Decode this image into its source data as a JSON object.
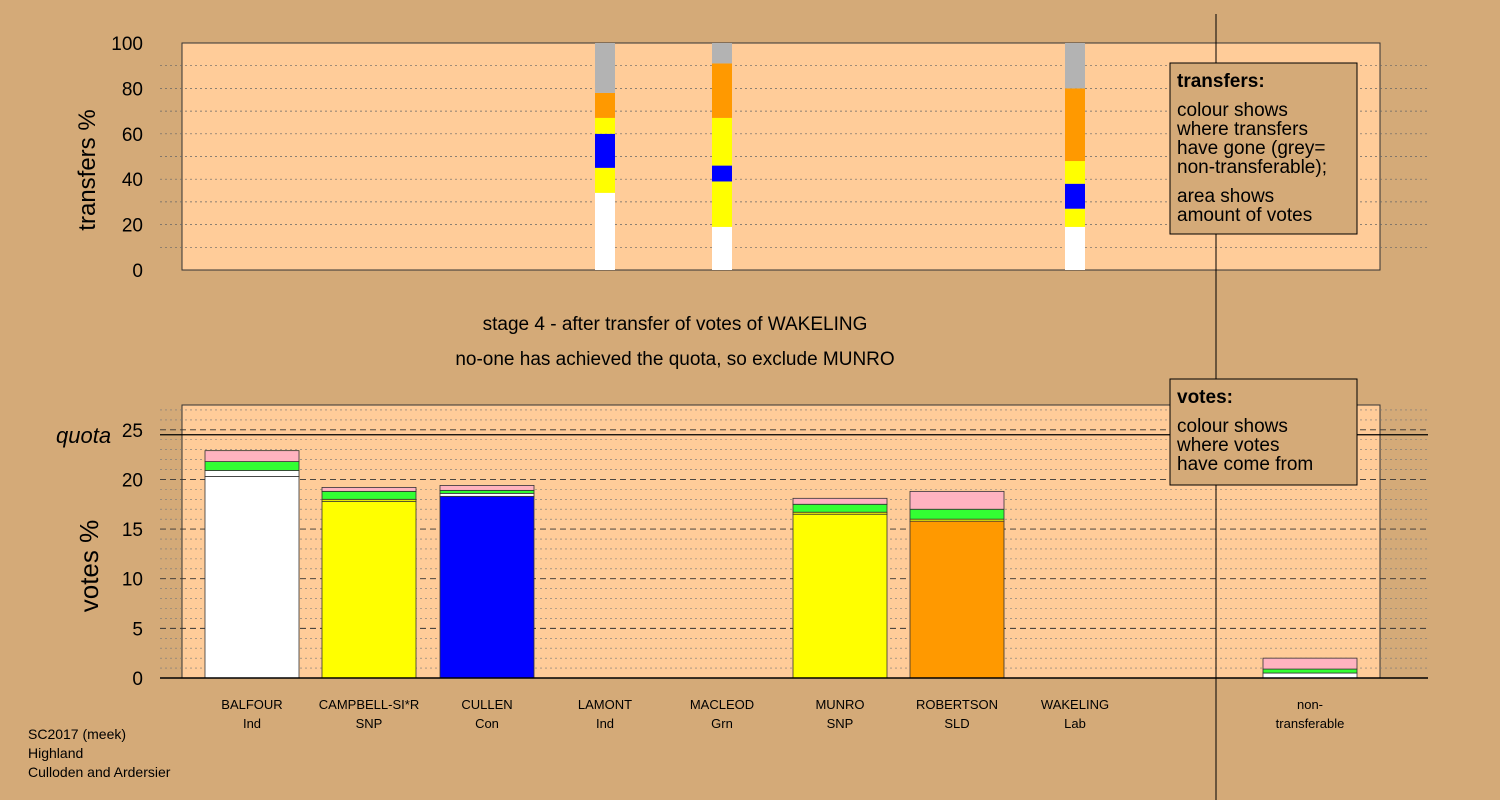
{
  "chart_data": [
    {
      "type": "bar",
      "name": "transfers",
      "ylabel": "transfers %",
      "ylim": [
        0,
        100
      ],
      "yticks": [
        0,
        20,
        40,
        60,
        80,
        100
      ],
      "grid": true,
      "columns": [
        {
          "candidate": "LAMONT",
          "segments": [
            {
              "from": 0,
              "to": 34,
              "color": "#ffffff"
            },
            {
              "from": 34,
              "to": 45,
              "color": "#ffff00"
            },
            {
              "from": 45,
              "to": 60,
              "color": "#0000ff"
            },
            {
              "from": 60,
              "to": 67,
              "color": "#ffff00"
            },
            {
              "from": 67,
              "to": 78,
              "color": "#ff9900"
            },
            {
              "from": 78,
              "to": 100,
              "color": "#b3b3b3"
            }
          ]
        },
        {
          "candidate": "MACLEOD",
          "segments": [
            {
              "from": 0,
              "to": 19,
              "color": "#ffffff"
            },
            {
              "from": 19,
              "to": 39,
              "color": "#ffff00"
            },
            {
              "from": 39,
              "to": 46,
              "color": "#0000ff"
            },
            {
              "from": 46,
              "to": 67,
              "color": "#ffff00"
            },
            {
              "from": 67,
              "to": 91,
              "color": "#ff9900"
            },
            {
              "from": 91,
              "to": 100,
              "color": "#b3b3b3"
            }
          ]
        },
        {
          "candidate": "WAKELING",
          "segments": [
            {
              "from": 0,
              "to": 19,
              "color": "#ffffff"
            },
            {
              "from": 19,
              "to": 27,
              "color": "#ffff00"
            },
            {
              "from": 27,
              "to": 38,
              "color": "#0000ff"
            },
            {
              "from": 38,
              "to": 48,
              "color": "#ffff00"
            },
            {
              "from": 48,
              "to": 80,
              "color": "#ff9900"
            },
            {
              "from": 80,
              "to": 100,
              "color": "#b3b3b3"
            }
          ]
        }
      ]
    },
    {
      "type": "bar",
      "name": "votes",
      "ylabel": "votes %",
      "ylim": [
        0,
        27.5
      ],
      "yticks": [
        0,
        5,
        10,
        15,
        20,
        25
      ],
      "quota": 24.5,
      "quota_label": "quota",
      "grid": true,
      "categories": [
        "BALFOUR",
        "CAMPBELL-SI*R",
        "CULLEN",
        "LAMONT",
        "MACLEOD",
        "MUNRO",
        "ROBERTSON",
        "WAKELING",
        "non-transferable"
      ],
      "bars": [
        {
          "name": "BALFOUR",
          "party": "Ind",
          "segments": [
            {
              "value": 20.3,
              "color": "#ffffff"
            },
            {
              "value": 0.6,
              "color": "#ffffff"
            },
            {
              "value": 0.9,
              "color": "#33ff33"
            },
            {
              "value": 1.1,
              "color": "#ffb3c0"
            }
          ]
        },
        {
          "name": "CAMPBELL-SI*R",
          "party": "SNP",
          "segments": [
            {
              "value": 17.8,
              "color": "#ffff00"
            },
            {
              "value": 0.2,
              "color": "#ffff00"
            },
            {
              "value": 0.8,
              "color": "#33ff33"
            },
            {
              "value": 0.4,
              "color": "#ffb3c0"
            }
          ]
        },
        {
          "name": "CULLEN",
          "party": "Con",
          "segments": [
            {
              "value": 18.3,
              "color": "#0000ff"
            },
            {
              "value": 0.3,
              "color": "#ffffff"
            },
            {
              "value": 0.3,
              "color": "#33ff33"
            },
            {
              "value": 0.5,
              "color": "#ffb3c0"
            }
          ]
        },
        {
          "name": "LAMONT",
          "party": "Ind",
          "segments": []
        },
        {
          "name": "MACLEOD",
          "party": "Grn",
          "segments": []
        },
        {
          "name": "MUNRO",
          "party": "SNP",
          "segments": [
            {
              "value": 16.5,
              "color": "#ffff00"
            },
            {
              "value": 0.2,
              "color": "#ffff00"
            },
            {
              "value": 0.8,
              "color": "#33ff33"
            },
            {
              "value": 0.6,
              "color": "#ffb3c0"
            }
          ]
        },
        {
          "name": "ROBERTSON",
          "party": "SLD",
          "segments": [
            {
              "value": 15.8,
              "color": "#ff9900"
            },
            {
              "value": 0.2,
              "color": "#ffff00"
            },
            {
              "value": 1.0,
              "color": "#33ff33"
            },
            {
              "value": 1.8,
              "color": "#ffb3c0"
            }
          ]
        },
        {
          "name": "WAKELING",
          "party": "Lab",
          "segments": []
        },
        {
          "name": "non-transferable",
          "party": "",
          "segments": [
            {
              "value": 0.5,
              "color": "#ffffff"
            },
            {
              "value": 0.4,
              "color": "#33ff33"
            },
            {
              "value": 1.1,
              "color": "#ffb3c0"
            }
          ]
        }
      ]
    }
  ],
  "labels": {
    "stage": "stage 4 - after transfer of votes of WAKELING",
    "exclusion": "no-one has achieved the quota, so exclude MUNRO",
    "nontransferable_line1": "non-",
    "nontransferable_line2": "transferable",
    "footer1": "SC2017 (meek)",
    "footer2": "Highland",
    "footer3": "Culloden and Ardersier"
  },
  "legends": {
    "transfers_title": "transfers:",
    "transfers_lines": [
      "colour shows",
      "where transfers",
      "have gone (grey=",
      "non-transferable);"
    ],
    "transfers_lines2": [
      "area shows",
      "amount of votes"
    ],
    "votes_title": "votes:",
    "votes_lines": [
      "colour shows",
      "where votes",
      "have come from"
    ]
  },
  "colors": {
    "background": "#d4aa78",
    "panel": "#ffcc99"
  }
}
